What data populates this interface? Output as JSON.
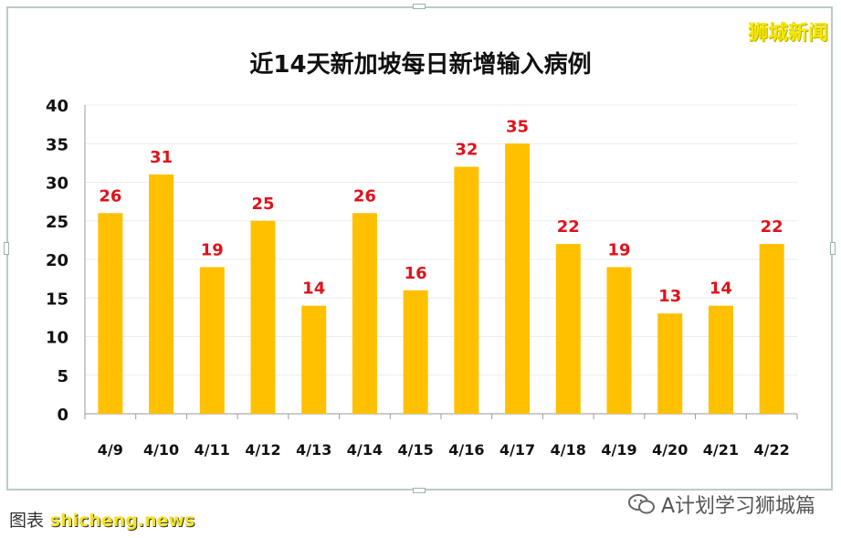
{
  "brand_watermark": "狮城新闻",
  "chart_data": {
    "type": "bar",
    "title": "近14天新加坡每日新增输入病例",
    "categories": [
      "4/9",
      "4/10",
      "4/11",
      "4/12",
      "4/13",
      "4/14",
      "4/15",
      "4/16",
      "4/17",
      "4/18",
      "4/19",
      "4/20",
      "4/21",
      "4/22"
    ],
    "values": [
      26,
      31,
      19,
      25,
      14,
      26,
      16,
      32,
      35,
      22,
      19,
      13,
      14,
      22
    ],
    "ylim": [
      0,
      40
    ],
    "yticks": [
      0,
      5,
      10,
      15,
      20,
      25,
      30,
      35,
      40
    ],
    "xlabel": "",
    "ylabel": "",
    "grid": true,
    "bar_color": "#ffc000",
    "label_color": "#e0121b"
  },
  "footer": {
    "left_text": "shicheng.news",
    "left_prefix": "图表",
    "right_text": "A计划学习狮城篇",
    "right_icon": "wechat-icon"
  }
}
